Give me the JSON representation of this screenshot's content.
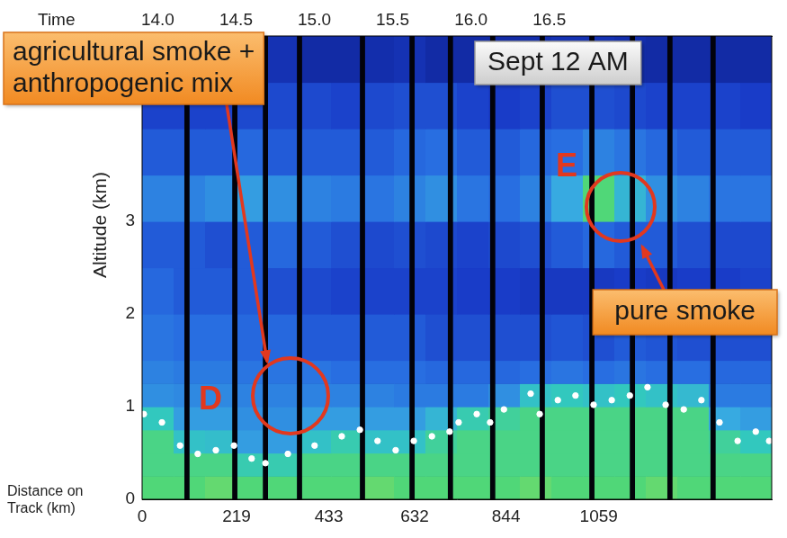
{
  "chart_data": {
    "type": "heatmap",
    "x_label": "Distance on Track (km)",
    "y_label": "Altitude (km)",
    "xlim": [
      0,
      1460
    ],
    "xticks": [
      0,
      219,
      433,
      632,
      844,
      1059
    ],
    "ylim": [
      0,
      5
    ],
    "yticks": [
      0,
      1,
      2,
      3
    ],
    "top_axis": {
      "label": "Time",
      "lim": [
        13.9,
        17.92
      ],
      "ticks": [
        {
          "value": 14,
          "label": "14.0"
        },
        {
          "value": 14.5,
          "label": "14.5"
        },
        {
          "value": 15,
          "label": "15.0"
        },
        {
          "value": 15.5,
          "label": "15.5"
        },
        {
          "value": 16,
          "label": "16.0"
        },
        {
          "value": 16.5,
          "label": "16.5"
        }
      ]
    },
    "grid": false,
    "x_edges": [
      0,
      73,
      146,
      219,
      292,
      365,
      438,
      511,
      584,
      657,
      730,
      803,
      876,
      949,
      1022,
      1095,
      1168,
      1241,
      1314,
      1387,
      1460
    ],
    "y_edges": [
      0,
      0.25,
      0.5,
      0.75,
      1,
      1.25,
      1.5,
      2,
      2.5,
      3,
      3.5,
      4,
      4.5,
      5
    ],
    "cells": [
      [
        0.6,
        0.6,
        0.62,
        0.6,
        0.6,
        0.6,
        0.6,
        0.62,
        0.6,
        0.6,
        0.6,
        0.6,
        0.62,
        0.6,
        0.6,
        0.6,
        0.62,
        0.6,
        0.6,
        0.6
      ],
      [
        0.58,
        0.58,
        0.58,
        0.52,
        0.52,
        0.58,
        0.58,
        0.58,
        0.58,
        0.58,
        0.58,
        0.58,
        0.58,
        0.58,
        0.58,
        0.58,
        0.58,
        0.58,
        0.58,
        0.58
      ],
      [
        0.58,
        0.48,
        0.47,
        0.4,
        0.4,
        0.48,
        0.52,
        0.48,
        0.48,
        0.55,
        0.58,
        0.58,
        0.58,
        0.58,
        0.58,
        0.58,
        0.58,
        0.58,
        0.55,
        0.5
      ],
      [
        0.5,
        0.4,
        0.4,
        0.38,
        0.38,
        0.4,
        0.4,
        0.4,
        0.4,
        0.45,
        0.52,
        0.55,
        0.58,
        0.58,
        0.58,
        0.58,
        0.58,
        0.58,
        0.42,
        0.4
      ],
      [
        0.38,
        0.37,
        0.37,
        0.36,
        0.36,
        0.36,
        0.36,
        0.36,
        0.35,
        0.35,
        0.35,
        0.38,
        0.48,
        0.5,
        0.48,
        0.5,
        0.48,
        0.46,
        0.35,
        0.35
      ],
      [
        0.36,
        0.35,
        0.35,
        0.34,
        0.34,
        0.34,
        0.33,
        0.33,
        0.33,
        0.32,
        0.32,
        0.32,
        0.33,
        0.34,
        0.33,
        0.34,
        0.33,
        0.33,
        0.32,
        0.32
      ],
      [
        0.34,
        0.33,
        0.33,
        0.32,
        0.32,
        0.3,
        0.3,
        0.3,
        0.3,
        0.28,
        0.28,
        0.28,
        0.28,
        0.29,
        0.28,
        0.3,
        0.29,
        0.28,
        0.28,
        0.28
      ],
      [
        0.32,
        0.3,
        0.3,
        0.3,
        0.28,
        0.27,
        0.26,
        0.26,
        0.26,
        0.26,
        0.25,
        0.25,
        0.24,
        0.24,
        0.24,
        0.25,
        0.24,
        0.25,
        0.25,
        0.26
      ],
      [
        0.3,
        0.3,
        0.28,
        0.3,
        0.32,
        0.3,
        0.28,
        0.27,
        0.28,
        0.27,
        0.26,
        0.27,
        0.28,
        0.3,
        0.32,
        0.3,
        0.3,
        0.28,
        0.27,
        0.27
      ],
      [
        0.36,
        0.36,
        0.38,
        0.4,
        0.38,
        0.36,
        0.35,
        0.34,
        0.36,
        0.38,
        0.34,
        0.33,
        0.36,
        0.42,
        0.6,
        0.45,
        0.38,
        0.36,
        0.34,
        0.34
      ],
      [
        0.3,
        0.3,
        0.3,
        0.32,
        0.3,
        0.3,
        0.3,
        0.3,
        0.32,
        0.33,
        0.3,
        0.3,
        0.32,
        0.33,
        0.36,
        0.34,
        0.32,
        0.3,
        0.3,
        0.3
      ],
      [
        0.26,
        0.26,
        0.26,
        0.27,
        0.27,
        0.27,
        0.26,
        0.27,
        0.28,
        0.28,
        0.26,
        0.25,
        0.26,
        0.28,
        0.28,
        0.27,
        0.26,
        0.26,
        0.26,
        0.25
      ],
      [
        0.2,
        0.2,
        0.21,
        0.2,
        0.22,
        0.2,
        0.2,
        0.21,
        0.22,
        0.2,
        0.2,
        0.2,
        0.21,
        0.22,
        0.22,
        0.21,
        0.2,
        0.2,
        0.2,
        0.2
      ]
    ],
    "data_gaps": [
      [
        98,
        110
      ],
      [
        209,
        221
      ],
      [
        280,
        292
      ],
      [
        359,
        371
      ],
      [
        505,
        517
      ],
      [
        620,
        632
      ],
      [
        709,
        721
      ],
      [
        807,
        819
      ],
      [
        922,
        934
      ],
      [
        1037,
        1049
      ],
      [
        1131,
        1143
      ],
      [
        1218,
        1230
      ],
      [
        1318,
        1330
      ]
    ],
    "series": [
      {
        "type": "scatter",
        "color": "#ffffff",
        "marker": "circle",
        "x": [
          4,
          46,
          88,
          129,
          171,
          213,
          254,
          286,
          338,
          400,
          463,
          505,
          546,
          588,
          630,
          672,
          713,
          734,
          776,
          807,
          839,
          901,
          922,
          964,
          1005,
          1047,
          1089,
          1131,
          1172,
          1214,
          1256,
          1297,
          1339,
          1381,
          1423,
          1454
        ],
        "values": [
          0.92,
          0.83,
          0.58,
          0.49,
          0.53,
          0.58,
          0.44,
          0.39,
          0.49,
          0.58,
          0.68,
          0.75,
          0.63,
          0.53,
          0.63,
          0.68,
          0.73,
          0.83,
          0.92,
          0.83,
          0.97,
          1.14,
          0.92,
          1.07,
          1.12,
          1.02,
          1.07,
          1.12,
          1.21,
          1.02,
          0.97,
          1.07,
          0.83,
          0.63,
          0.73,
          0.63
        ]
      }
    ],
    "annotations": {
      "callout_d": "agricultural smoke + anthropogenic mix",
      "date": "Sept 12 AM",
      "callout_e": "pure smoke",
      "marker_d": "D",
      "marker_e": "E"
    }
  }
}
